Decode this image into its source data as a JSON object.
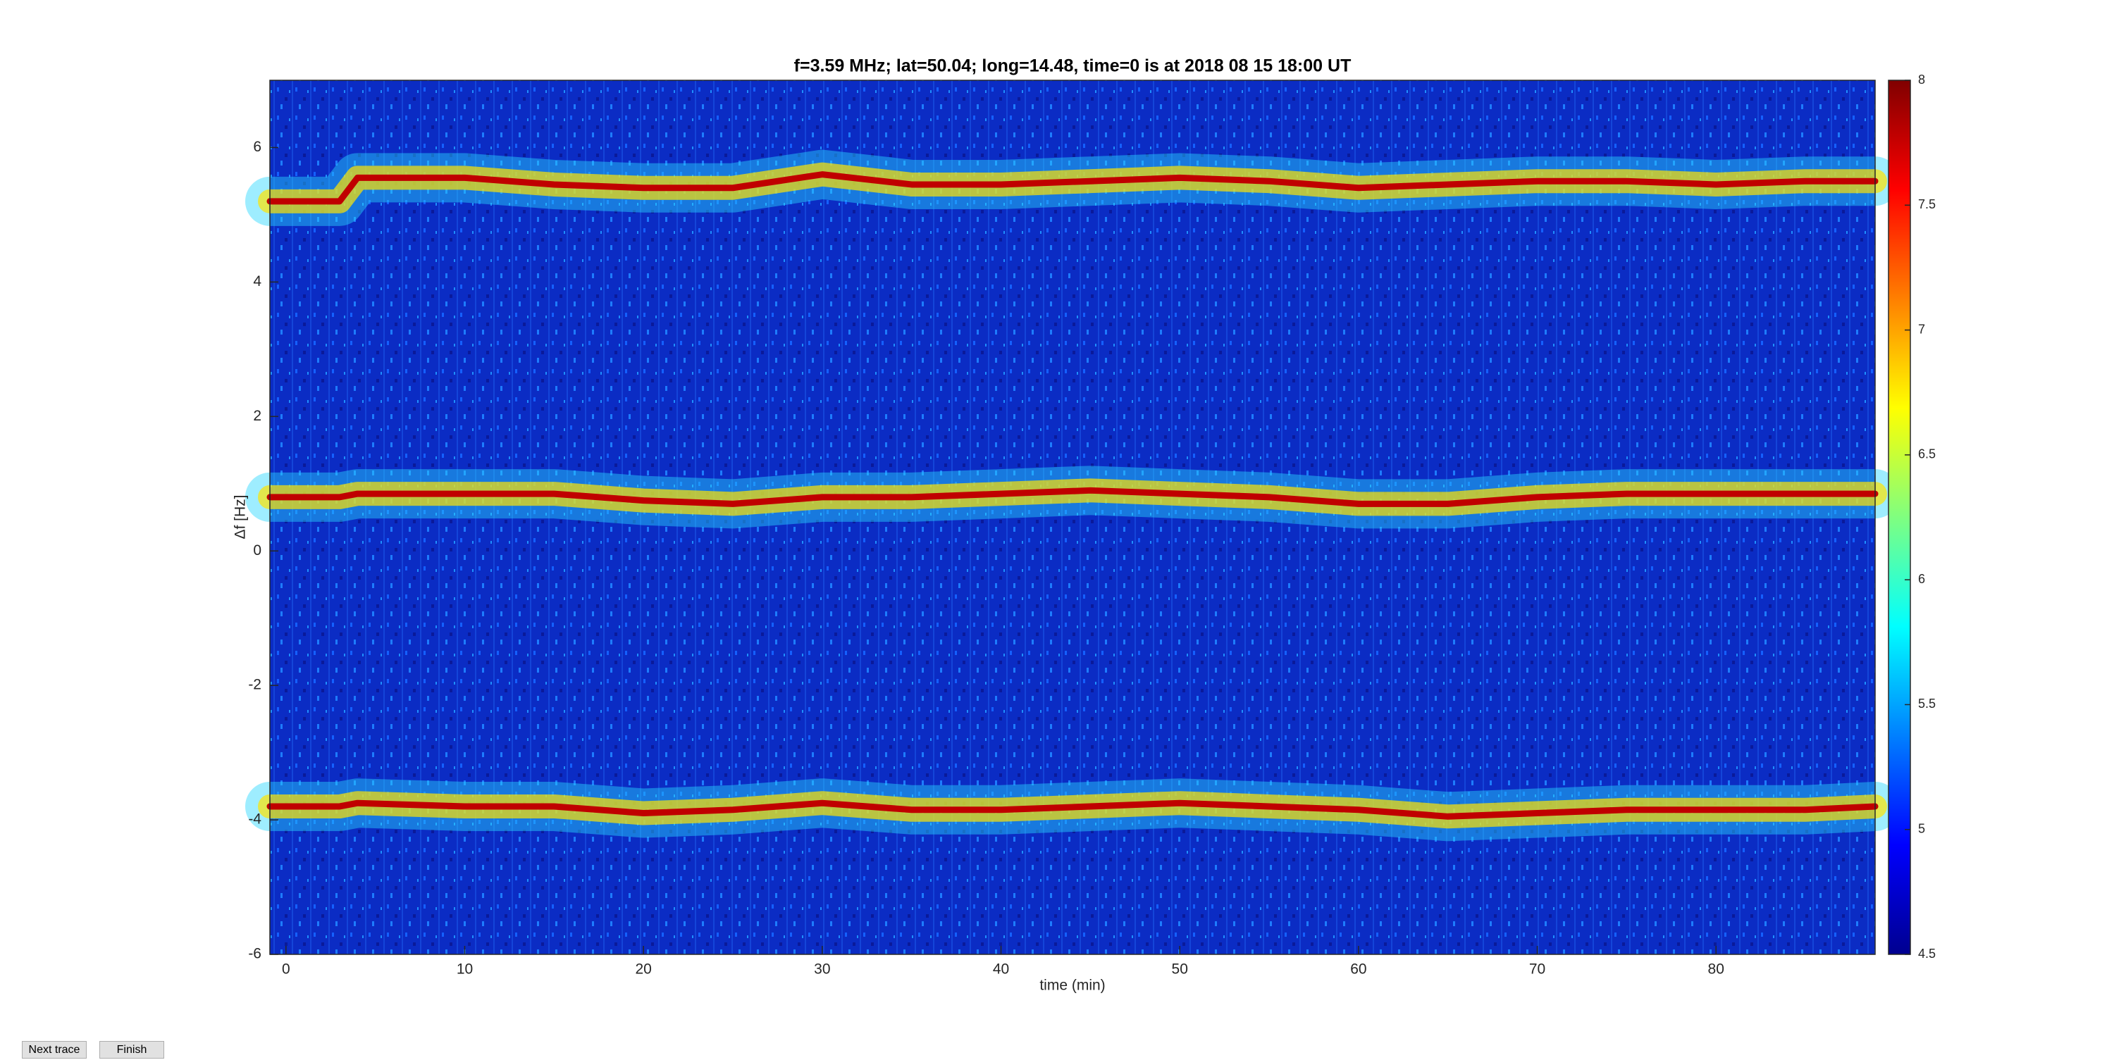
{
  "chart_data": {
    "type": "line",
    "title": "f=3.59 MHz;  lat=50.04; long=14.48, time=0 is at 2018 08 15 18:00 UT",
    "x_label": "time (min)",
    "y_label": "Δf [Hz]",
    "x": [
      -0.9,
      3,
      4,
      10,
      15,
      20,
      25,
      30,
      35,
      40,
      45,
      50,
      55,
      60,
      65,
      70,
      75,
      80,
      85,
      88.9
    ],
    "series": [
      {
        "color": "#c00000",
        "values": [
          5.2,
          5.2,
          5.55,
          5.55,
          5.45,
          5.4,
          5.4,
          5.6,
          5.45,
          5.45,
          5.5,
          5.55,
          5.5,
          5.4,
          5.45,
          5.5,
          5.5,
          5.45,
          5.5,
          5.5
        ]
      },
      {
        "color": "#c00000",
        "values": [
          0.8,
          0.8,
          0.85,
          0.85,
          0.85,
          0.75,
          0.7,
          0.8,
          0.8,
          0.85,
          0.9,
          0.85,
          0.8,
          0.7,
          0.7,
          0.8,
          0.85,
          0.85,
          0.85,
          0.85
        ]
      },
      {
        "color": "#c00000",
        "values": [
          -3.8,
          -3.8,
          -3.75,
          -3.8,
          -3.8,
          -3.9,
          -3.85,
          -3.75,
          -3.85,
          -3.85,
          -3.8,
          -3.75,
          -3.8,
          -3.85,
          -3.95,
          -3.9,
          -3.85,
          -3.85,
          -3.85,
          -3.8
        ]
      }
    ],
    "xlim": [
      -0.9,
      88.9
    ],
    "xticks": [
      0,
      10,
      20,
      30,
      40,
      50,
      60,
      70,
      80
    ],
    "ylim": [
      -6,
      7
    ],
    "yticks": [
      -6,
      -4,
      -2,
      0,
      2,
      4,
      6
    ],
    "colormap": "jet",
    "clim": [
      4.5,
      8
    ],
    "cticks": [
      4.5,
      5,
      5.5,
      6,
      6.5,
      7,
      7.5,
      8
    ]
  },
  "controls": {
    "next": "Next trace",
    "finish": "Finish"
  }
}
